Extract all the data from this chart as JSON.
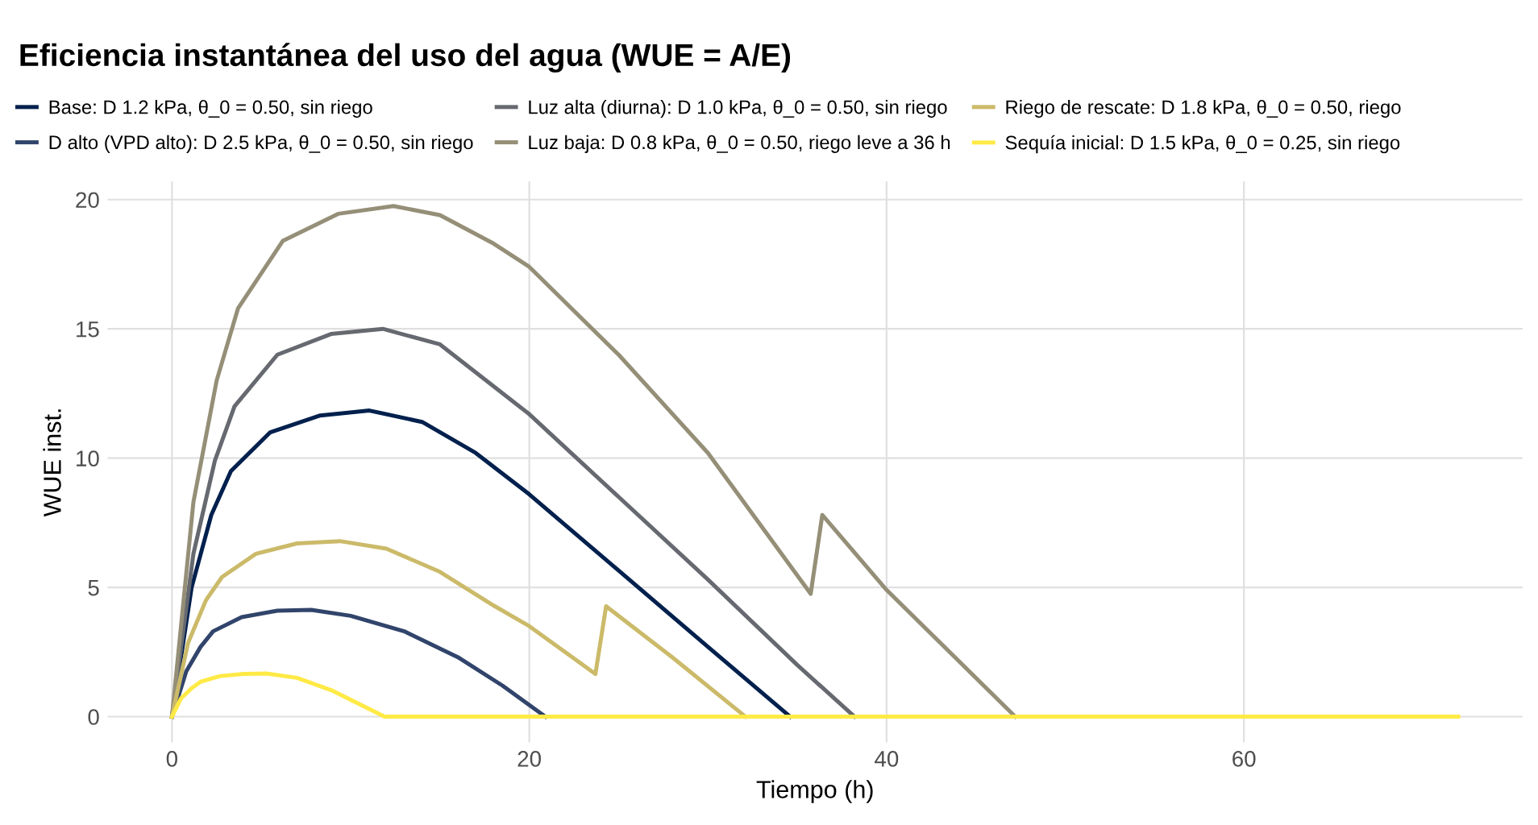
{
  "chart_data": {
    "type": "line",
    "title": "Eficiencia instantánea del uso del agua (WUE = A/E)",
    "xlabel": "Tiempo (h)",
    "ylabel": "WUE inst.",
    "xlim": [
      -3.6,
      75.6
    ],
    "ylim": [
      -1,
      20.7
    ],
    "xticks": [
      0,
      20,
      40,
      60
    ],
    "yticks": [
      0,
      5,
      10,
      15,
      20
    ],
    "grid": true,
    "legend": "top",
    "line_style": "solid",
    "series": [
      {
        "name": "Base: D 1.2 kPa, θ_0 = 0.50, sin riego",
        "color": "#00204d",
        "x": [
          0,
          1.1,
          2.2,
          3.3,
          5.5,
          8.3,
          11.05,
          14,
          17,
          20,
          25,
          30,
          34.6
        ],
        "values": [
          0,
          5.0,
          7.8,
          9.5,
          11.0,
          11.65,
          11.84,
          11.4,
          10.2,
          8.6,
          5.65,
          2.7,
          0
        ]
      },
      {
        "name": "D alto (VPD alto): D 2.5 kPa, θ_0 = 0.50, sin riego",
        "color": "#31446b",
        "x": [
          0,
          0.8,
          1.6,
          2.3,
          3.9,
          5.9,
          7.8,
          10,
          13,
          16,
          18.5,
          20.9
        ],
        "values": [
          0,
          1.75,
          2.7,
          3.3,
          3.85,
          4.1,
          4.13,
          3.9,
          3.3,
          2.3,
          1.2,
          0
        ]
      },
      {
        "name": "Luz alta (diurna): D 1.0 kPa, θ_0 = 0.50, sin riego",
        "color": "#666970",
        "x": [
          0,
          1.2,
          2.4,
          3.5,
          5.9,
          8.9,
          11.8,
          15,
          20,
          25,
          30,
          35,
          38.2
        ],
        "values": [
          0,
          6.3,
          9.9,
          12.0,
          14.0,
          14.8,
          15.0,
          14.4,
          11.7,
          8.5,
          5.3,
          2.0,
          0
        ]
      },
      {
        "name": "Luz baja: D 0.8 kPa, θ_0 = 0.50, riego leve a 36 h",
        "color": "#958f78",
        "x": [
          0,
          1.2,
          2.5,
          3.7,
          6.2,
          9.3,
          12.4,
          15,
          18,
          20,
          25,
          30,
          35.75,
          36.4,
          40,
          47.2
        ],
        "values": [
          0,
          8.3,
          13.0,
          15.8,
          18.4,
          19.45,
          19.75,
          19.4,
          18.3,
          17.4,
          14.0,
          10.2,
          4.75,
          7.8,
          4.9,
          0
        ]
      },
      {
        "name": "Riego de rescate: D 1.8 kPa, θ_0 = 0.50, riego",
        "color": "#cbba69",
        "x": [
          0,
          0.9,
          1.9,
          2.8,
          4.7,
          7,
          9.4,
          12,
          15,
          18,
          20,
          23.7,
          24.3,
          28,
          32.1
        ],
        "values": [
          0,
          2.85,
          4.5,
          5.4,
          6.3,
          6.7,
          6.79,
          6.5,
          5.6,
          4.3,
          3.5,
          1.65,
          4.27,
          2.3,
          0
        ]
      },
      {
        "name": "Sequía inicial: D 1.5 kPa, θ_0 = 0.25, sin riego",
        "color": "#ffea46",
        "x": [
          0,
          0.5,
          1.1,
          1.6,
          2.7,
          4,
          5.3,
          7,
          9,
          11.9,
          72
        ],
        "values": [
          0,
          0.7,
          1.1,
          1.35,
          1.57,
          1.65,
          1.67,
          1.5,
          1.0,
          0,
          0
        ]
      }
    ]
  }
}
